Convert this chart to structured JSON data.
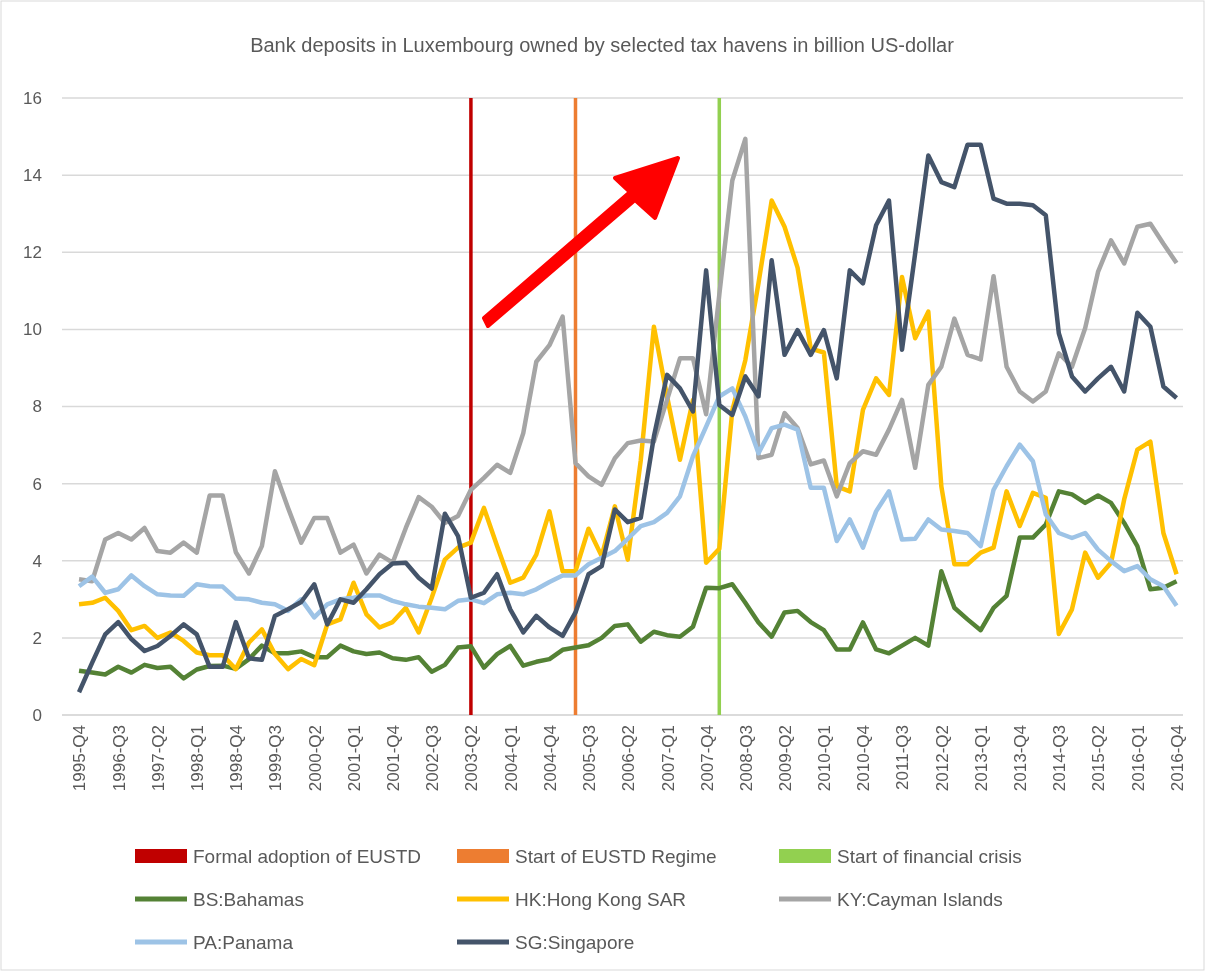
{
  "chart_data": {
    "type": "line",
    "title": "Bank deposits in Luxembourg owned by selected tax havens in billion US-dollar",
    "x": [
      "1995-10",
      "1996-01",
      "1996-04",
      "1996-07",
      "1996-10",
      "1997-01",
      "1997-04",
      "1997-07",
      "1997-10",
      "1998-01",
      "1998-04",
      "1998-07",
      "1998-10",
      "1999-01",
      "1999-04",
      "1999-07",
      "1999-10",
      "2000-01",
      "2000-04",
      "2000-07",
      "2000-10",
      "2001-01",
      "2001-04",
      "2001-07",
      "2001-10",
      "2002-01",
      "2002-04",
      "2002-07",
      "2002-10",
      "2003-01",
      "2003-04",
      "2003-07",
      "2003-10",
      "2004-01",
      "2004-04",
      "2004-07",
      "2004-10",
      "2005-01",
      "2005-04",
      "2005-07",
      "2005-10",
      "2006-01",
      "2006-04",
      "2006-07",
      "2006-10",
      "2007-01",
      "2007-04",
      "2007-07",
      "2007-10",
      "2008-01",
      "2008-04",
      "2008-07",
      "2008-10",
      "2009-01",
      "2009-04",
      "2009-07",
      "2009-10",
      "2010-01",
      "2010-04",
      "2010-07",
      "2010-10",
      "2011-01",
      "2011-04",
      "2011-07",
      "2011-10",
      "2012-01",
      "2012-04",
      "2012-07",
      "2012-10",
      "2013-01",
      "2013-04",
      "2013-07",
      "2013-10",
      "2014-01",
      "2014-04",
      "2014-07",
      "2014-10",
      "2015-01",
      "2015-04",
      "2015-07",
      "2015-10",
      "2016-01",
      "2016-04",
      "2016-07",
      "2016-10"
    ],
    "xlim": [
      "1995-06-04",
      "2016-11-15"
    ],
    "xticks": [
      {
        "value": "1995-10",
        "label": "1995-Q4"
      },
      {
        "value": "1996-07",
        "label": "1996-Q3"
      },
      {
        "value": "1997-04",
        "label": "1997-Q2"
      },
      {
        "value": "1998-01",
        "label": "1998-Q1"
      },
      {
        "value": "1998-10",
        "label": "1998-Q4"
      },
      {
        "value": "1999-07",
        "label": "1999-Q3"
      },
      {
        "value": "2000-04",
        "label": "2000-Q2"
      },
      {
        "value": "2001-01",
        "label": "2001-Q1"
      },
      {
        "value": "2001-10",
        "label": "2001-Q4"
      },
      {
        "value": "2002-07",
        "label": "2002-Q3"
      },
      {
        "value": "2003-04",
        "label": "2003-Q2"
      },
      {
        "value": "2004-01",
        "label": "2004-Q1"
      },
      {
        "value": "2004-10",
        "label": "2004-Q4"
      },
      {
        "value": "2005-07",
        "label": "2005-Q3"
      },
      {
        "value": "2006-04",
        "label": "2006-Q2"
      },
      {
        "value": "2007-01",
        "label": "2007-Q1"
      },
      {
        "value": "2007-10",
        "label": "2007-Q4"
      },
      {
        "value": "2008-07",
        "label": "2008-Q3"
      },
      {
        "value": "2009-04",
        "label": "2009-Q2"
      },
      {
        "value": "2010-01",
        "label": "2010-Q1"
      },
      {
        "value": "2010-10",
        "label": "2010-Q4"
      },
      {
        "value": "2011-07",
        "label": "2011-Q3"
      },
      {
        "value": "2012-04",
        "label": "2012-Q2"
      },
      {
        "value": "2013-01",
        "label": "2013-Q1"
      },
      {
        "value": "2013-10",
        "label": "2013-Q4"
      },
      {
        "value": "2014-07",
        "label": "2014-Q3"
      },
      {
        "value": "2015-04",
        "label": "2015-Q2"
      },
      {
        "value": "2016-01",
        "label": "2016-Q1"
      },
      {
        "value": "2016-10",
        "label": "2016-Q4"
      }
    ],
    "ylim": [
      0,
      16
    ],
    "yticks": [
      0,
      2,
      4,
      6,
      8,
      10,
      12,
      14,
      16
    ],
    "grid": "y",
    "legend": "bottom",
    "marker": "none",
    "line_style": "solid",
    "ref_lines": [
      {
        "axis": "x",
        "value": "2003-04",
        "label": "Formal adoption of EUSTD",
        "color": "#c00000"
      },
      {
        "axis": "x",
        "value": "2005-04",
        "label": "Start of EUSTD Regime",
        "color": "#ed7d31"
      },
      {
        "axis": "x",
        "value": "2008-01",
        "label": "Start of financial crisis",
        "color": "#92d050"
      }
    ],
    "series": [
      {
        "name": "BS:Bahamas",
        "color": "#548235",
        "values": [
          1.15,
          1.1,
          1.05,
          1.25,
          1.1,
          1.3,
          1.22,
          1.25,
          0.95,
          1.18,
          1.27,
          1.28,
          1.2,
          1.45,
          1.8,
          1.6,
          1.6,
          1.65,
          1.5,
          1.5,
          1.8,
          1.65,
          1.58,
          1.62,
          1.47,
          1.43,
          1.5,
          1.12,
          1.3,
          1.75,
          1.78,
          1.23,
          1.58,
          1.79,
          1.28,
          1.38,
          1.45,
          1.69,
          1.75,
          1.81,
          2.0,
          2.31,
          2.35,
          1.9,
          2.16,
          2.07,
          2.03,
          2.29,
          3.3,
          3.29,
          3.39,
          2.91,
          2.4,
          2.03,
          2.66,
          2.7,
          2.41,
          2.2,
          1.7,
          1.7,
          2.4,
          1.7,
          1.6,
          1.8,
          2.0,
          1.8,
          3.73,
          2.78,
          2.48,
          2.2,
          2.78,
          3.09,
          4.6,
          4.6,
          4.94,
          5.8,
          5.72,
          5.5,
          5.69,
          5.5,
          4.98,
          4.38,
          3.26,
          3.3,
          3.47
        ]
      },
      {
        "name": "HK:Hong Kong SAR",
        "color": "#ffc000",
        "values": [
          2.87,
          2.91,
          3.04,
          2.7,
          2.2,
          2.31,
          2.0,
          2.14,
          1.92,
          1.62,
          1.55,
          1.55,
          1.19,
          1.88,
          2.22,
          1.58,
          1.19,
          1.45,
          1.29,
          2.35,
          2.48,
          3.43,
          2.61,
          2.27,
          2.41,
          2.78,
          2.14,
          3.04,
          4.03,
          4.34,
          4.47,
          5.37,
          4.38,
          3.43,
          3.56,
          4.16,
          5.28,
          3.73,
          3.73,
          4.83,
          4.12,
          5.41,
          4.03,
          6.6,
          10.07,
          8.26,
          6.62,
          8.17,
          3.95,
          4.31,
          7.9,
          9.2,
          11.2,
          13.34,
          12.66,
          11.6,
          9.5,
          9.4,
          5.93,
          5.8,
          7.91,
          8.73,
          8.3,
          11.36,
          9.77,
          10.46,
          5.93,
          3.91,
          3.91,
          4.21,
          4.34,
          5.8,
          4.9,
          5.76,
          5.63,
          2.1,
          2.74,
          4.21,
          3.56,
          3.95,
          5.59,
          6.88,
          7.09,
          4.72,
          3.65
        ]
      },
      {
        "name": "KY:Cayman Islands",
        "color": "#a5a5a5",
        "values": [
          3.52,
          3.47,
          4.55,
          4.72,
          4.55,
          4.85,
          4.25,
          4.21,
          4.47,
          4.21,
          5.69,
          5.69,
          4.22,
          3.67,
          4.38,
          6.32,
          5.37,
          4.47,
          5.11,
          5.11,
          4.21,
          4.42,
          3.67,
          4.16,
          3.95,
          4.85,
          5.65,
          5.4,
          4.98,
          5.16,
          5.84,
          6.15,
          6.49,
          6.28,
          7.31,
          9.16,
          9.59,
          10.33,
          6.53,
          6.19,
          5.97,
          6.66,
          7.05,
          7.12,
          7.09,
          8.17,
          9.25,
          9.25,
          7.8,
          10.9,
          13.86,
          14.94,
          6.66,
          6.75,
          7.83,
          7.44,
          6.5,
          6.6,
          5.67,
          6.53,
          6.84,
          6.75,
          7.4,
          8.17,
          6.41,
          8.56,
          9.03,
          10.28,
          9.34,
          9.22,
          11.38,
          9.03,
          8.39,
          8.13,
          8.39,
          9.38,
          9.03,
          10.03,
          11.49,
          12.31,
          11.71,
          12.66,
          12.74,
          12.22,
          11.72
        ]
      },
      {
        "name": "PA:Panama",
        "color": "#9dc3e6",
        "values": [
          3.34,
          3.59,
          3.17,
          3.26,
          3.62,
          3.34,
          3.13,
          3.1,
          3.09,
          3.39,
          3.34,
          3.33,
          3.02,
          3.0,
          2.91,
          2.87,
          2.7,
          3.0,
          2.53,
          2.87,
          3.0,
          3.04,
          3.1,
          3.1,
          2.96,
          2.87,
          2.81,
          2.78,
          2.74,
          2.96,
          3.0,
          2.9,
          3.13,
          3.17,
          3.13,
          3.26,
          3.45,
          3.62,
          3.62,
          3.91,
          4.08,
          4.25,
          4.57,
          4.9,
          5.0,
          5.24,
          5.67,
          6.71,
          7.48,
          8.26,
          8.47,
          7.74,
          6.79,
          7.44,
          7.53,
          7.4,
          5.89,
          5.89,
          4.51,
          5.07,
          4.34,
          5.28,
          5.8,
          4.55,
          4.57,
          5.07,
          4.81,
          4.77,
          4.72,
          4.38,
          5.84,
          6.45,
          7.01,
          6.58,
          5.2,
          4.72,
          4.59,
          4.72,
          4.29,
          3.99,
          3.73,
          3.86,
          3.52,
          3.34,
          2.83
        ]
      },
      {
        "name": "SG:Singapore",
        "color": "#44546a",
        "values": [
          0.59,
          1.36,
          2.09,
          2.41,
          1.97,
          1.66,
          1.79,
          2.05,
          2.35,
          2.09,
          1.25,
          1.25,
          2.41,
          1.47,
          1.43,
          2.57,
          2.74,
          2.93,
          3.39,
          2.35,
          3.0,
          2.91,
          3.26,
          3.65,
          3.93,
          3.95,
          3.56,
          3.28,
          5.22,
          4.64,
          3.04,
          3.17,
          3.65,
          2.74,
          2.14,
          2.57,
          2.27,
          2.05,
          2.66,
          3.65,
          3.86,
          5.33,
          5.0,
          5.11,
          7.22,
          8.82,
          8.47,
          7.87,
          11.53,
          8.04,
          7.78,
          8.78,
          8.26,
          11.79,
          9.34,
          9.98,
          9.34,
          9.98,
          8.73,
          11.53,
          11.19,
          12.7,
          13.34,
          9.47,
          11.97,
          14.51,
          13.82,
          13.69,
          14.79,
          14.79,
          13.39,
          13.26,
          13.26,
          13.22,
          12.96,
          9.9,
          8.78,
          8.39,
          8.73,
          9.03,
          8.39,
          10.43,
          10.07,
          8.52,
          8.22
        ]
      }
    ]
  }
}
